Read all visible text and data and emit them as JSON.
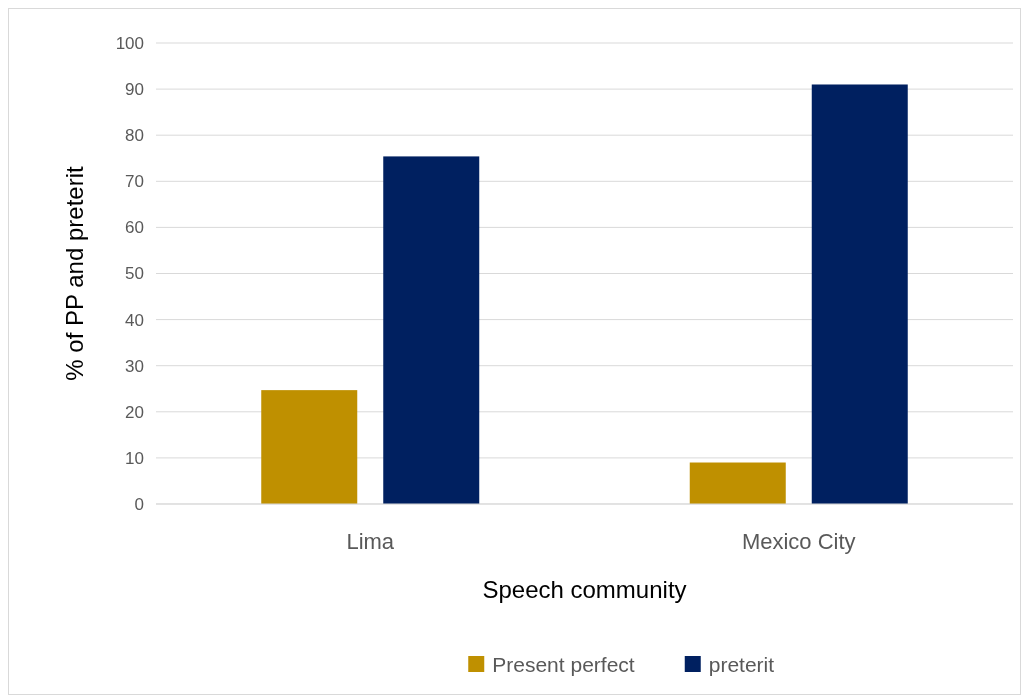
{
  "chart_data": {
    "type": "bar",
    "xlabel": "Speech community",
    "ylabel": "% of PP and preterit",
    "categories": [
      "Lima",
      "Mexico City"
    ],
    "series": [
      {
        "name": "Present perfect",
        "color": "#bf9000",
        "values": [
          24.7,
          9
        ]
      },
      {
        "name": "preterit",
        "color": "#002060",
        "values": [
          75.4,
          91
        ]
      }
    ],
    "ylim": [
      0,
      100
    ],
    "yticks": [
      0,
      10,
      20,
      30,
      40,
      50,
      60,
      70,
      80,
      90,
      100
    ],
    "grid": "y",
    "legend": "bottom"
  }
}
